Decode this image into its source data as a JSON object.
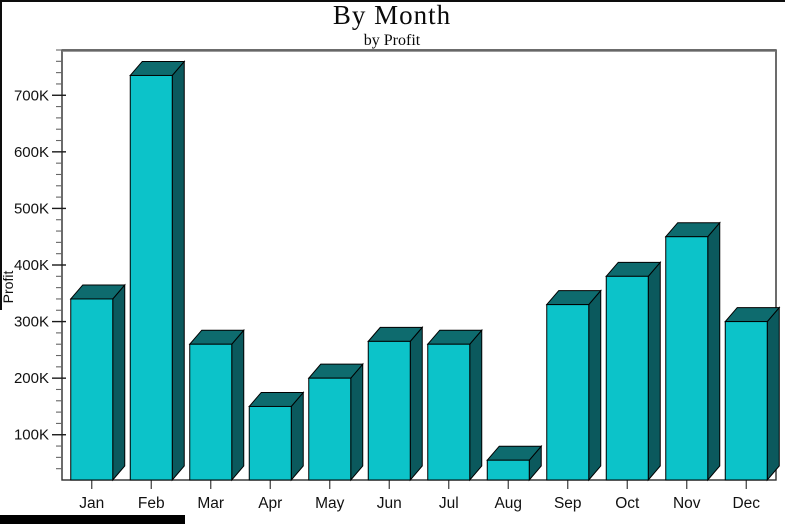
{
  "chart_data": {
    "type": "bar",
    "title": "By Month",
    "subtitle": "by Profit",
    "ylabel": "Profit",
    "xlabel": "",
    "legend": "none",
    "grid": "off",
    "categories": [
      "Jan",
      "Feb",
      "Mar",
      "Apr",
      "May",
      "Jun",
      "Jul",
      "Aug",
      "Sep",
      "Oct",
      "Nov",
      "Dec"
    ],
    "series": [
      {
        "name": "Profit",
        "values_thousands": [
          340,
          735,
          260,
          150,
          200,
          265,
          260,
          55,
          330,
          380,
          450,
          300
        ]
      }
    ],
    "y_axis": {
      "min_k": 20,
      "max_k": 780,
      "major_step_k": 100,
      "minor_step_k": 20,
      "tick_values_k": [
        100,
        200,
        300,
        400,
        500,
        600,
        700
      ],
      "tick_labels": [
        "100K",
        "200K",
        "300K",
        "400K",
        "500K",
        "600K",
        "700K"
      ]
    },
    "style": {
      "bar_front_color": "#0cc3c9",
      "bar_top_color": "#0e6b6e",
      "bar_side_color": "#0b595d",
      "bar_outline_color": "#000000",
      "frame_color": "#2e2e2e",
      "major_tick_color": "#1a1a1a",
      "minor_tick_color": "#666666",
      "background_color": "#ffffff"
    }
  }
}
